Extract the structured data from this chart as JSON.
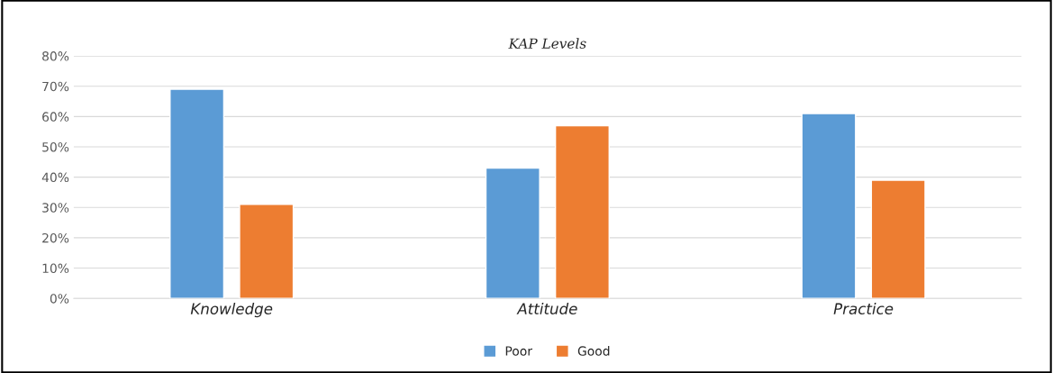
{
  "chart_data": {
    "type": "bar",
    "title": "KAP Levels",
    "categories": [
      "Knowledge",
      "Attitude",
      "Practice"
    ],
    "series": [
      {
        "name": "Poor",
        "color": "#5b9bd5",
        "values": [
          69,
          43,
          61
        ]
      },
      {
        "name": "Good",
        "color": "#ed7d31",
        "values": [
          31,
          57,
          39
        ]
      }
    ],
    "ylim": [
      0,
      80
    ],
    "yticks": [
      {
        "value": 0,
        "label": "0%"
      },
      {
        "value": 10,
        "label": "10%"
      },
      {
        "value": 20,
        "label": "20%"
      },
      {
        "value": 30,
        "label": "30%"
      },
      {
        "value": 40,
        "label": "40%"
      },
      {
        "value": 50,
        "label": "50%"
      },
      {
        "value": 60,
        "label": "60%"
      },
      {
        "value": 70,
        "label": "70%"
      },
      {
        "value": 80,
        "label": "80%"
      }
    ],
    "grid": "y",
    "legend": "bottom"
  }
}
